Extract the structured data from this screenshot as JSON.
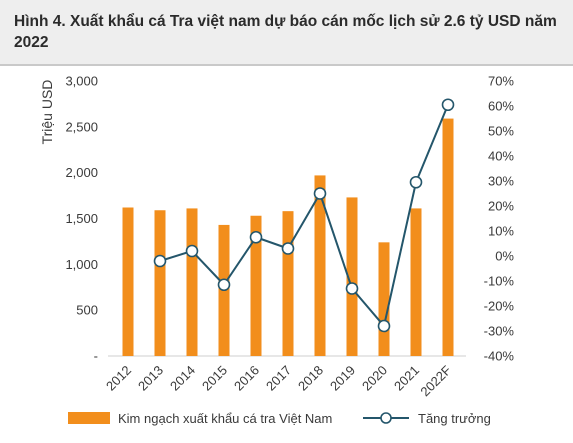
{
  "title": "Hình 4. Xuất khẩu cá Tra việt nam dự báo cán mốc lịch sử 2.6 tỷ USD năm 2022",
  "chart_data": {
    "type": "bar",
    "categories": [
      "2012",
      "2013",
      "2014",
      "2015",
      "2016",
      "2017",
      "2018",
      "2019",
      "2020",
      "2021",
      "2022F"
    ],
    "ylabel": "Triệu USD",
    "ylim": [
      0,
      3000
    ],
    "y2lim": [
      -0.4,
      0.7
    ],
    "y_ticks": [
      "-",
      "500",
      "1,000",
      "1,500",
      "2,000",
      "2,500",
      "3,000"
    ],
    "y2_ticks": [
      "-40%",
      "-30%",
      "-20%",
      "-10%",
      "0%",
      "10%",
      "20%",
      "30%",
      "40%",
      "50%",
      "60%",
      "70%"
    ],
    "series": [
      {
        "name": "Kim ngạch xuất khẩu cá tra Việt Nam",
        "type": "bar",
        "axis": "left",
        "color": "#f28e1c",
        "values": [
          1620,
          1590,
          1610,
          1430,
          1530,
          1580,
          1970,
          1730,
          1240,
          1610,
          2590
        ]
      },
      {
        "name": "Tăng trưởng",
        "type": "line",
        "axis": "right",
        "color": "#24566b",
        "values": [
          null,
          -0.02,
          0.02,
          -0.115,
          0.075,
          0.03,
          0.25,
          -0.13,
          -0.28,
          0.295,
          0.605
        ]
      }
    ],
    "grid": false,
    "legend_position": "bottom"
  }
}
